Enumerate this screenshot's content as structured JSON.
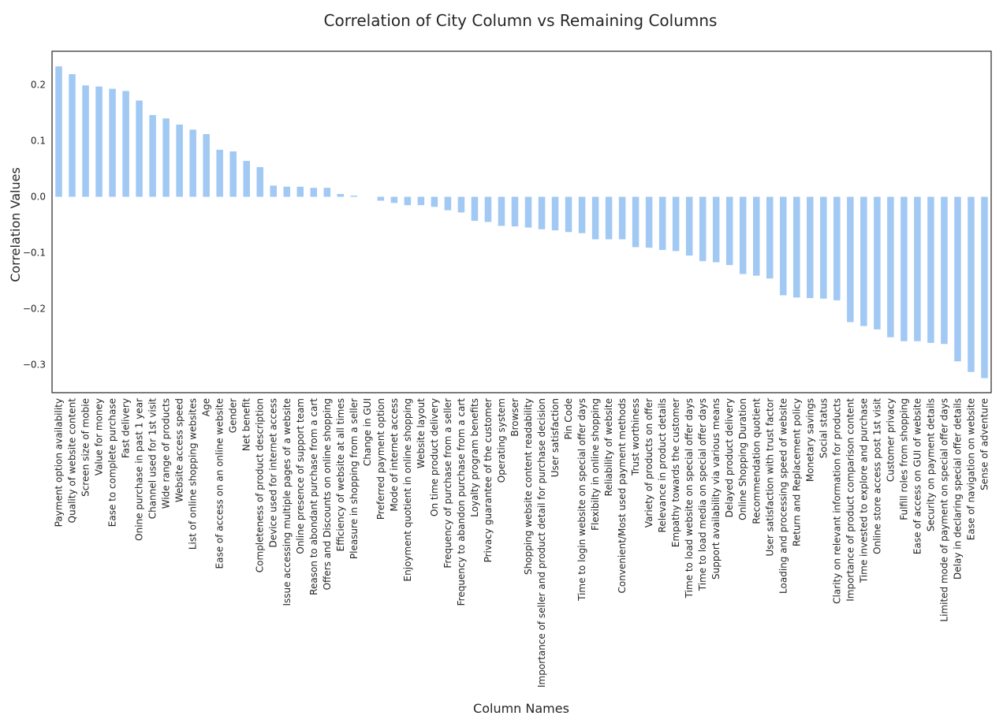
{
  "chart_data": {
    "type": "bar",
    "title": "Correlation of City Column vs Remaining Columns",
    "xlabel": "Column Names",
    "ylabel": "Correlation Values",
    "ylim": [
      -0.35,
      0.26
    ],
    "yticks": [
      0.2,
      0.1,
      0.0,
      -0.1,
      -0.2,
      -0.3
    ],
    "ytick_labels": [
      "0.2",
      "0.1",
      "0.0",
      "−0.1",
      "−0.2",
      "−0.3"
    ],
    "bar_color": "#a1c9f4",
    "grid": false,
    "legend": "none",
    "categories": [
      "Payment option availability",
      "Quality of website content",
      "Screen size of mobie",
      "Value for money",
      "Ease to complete purchase",
      "Fast delivery",
      "Onine purchase in past 1 year",
      "Channel used for 1st visit",
      "Wide range of products",
      "Website access speed",
      "List of online shopping websites",
      "Age",
      "Ease of access on an online website",
      "Gender",
      "Net benefit",
      "Completeness of product description",
      "Device used for internet access",
      "Issue accessing multiple pages of a website",
      "Online presence of support team",
      "Reason to abondant purchase from a cart",
      "Offers and Discounts on online shopping",
      "Efficiency of website at all times",
      "Pleasure in shopping from a seller",
      "Change in GUI",
      "Preferred payment option",
      "Mode of internet access",
      "Enjoyment quotient in online shopping",
      "Website layout",
      "On time product delivery",
      "Frequency of purchase from a seller",
      "Frequency to abandon purchase from a cart",
      "Loyalty program benefits",
      "Privacy guarantee of the customer",
      "Operating system",
      "Browser",
      "Shopping website content readability",
      "Importance of seller and product detail for purchase decision",
      "User satisfaction",
      "Pin Code",
      "Time to login website on special offer days",
      "Flexibilty in online shopping",
      "Reliability of website",
      "Convenient/Most used payment methods",
      "Trust worthiness",
      "Variety of products on offer",
      "Relevance in product details",
      "Empathy towards the customer",
      "Time to load website on special offer days",
      "Time to load media on special offer days",
      "Support availability via various means",
      "Delayed product delivery",
      "Online Shopping Duration",
      "Recommendation quotient",
      "User satisfaction with trust factor",
      "Loading and processing speed of website",
      "Return and Replacement policy",
      "Monetary savings",
      "Social status",
      "Clarity on relevant information for products",
      "Importance of product comparison content",
      "Time invested to explore and purchase",
      "Online store access post 1st visit",
      "Customer privacy",
      "Fulfill roles from shopping",
      "Ease of access on GUI of website",
      "Security on payment details",
      "Limited mode of payment on special offer days",
      "Delay in declaring special offer details",
      "Ease of navigation on website",
      "Sense of adventure"
    ],
    "values": [
      0.233,
      0.219,
      0.199,
      0.197,
      0.193,
      0.189,
      0.172,
      0.146,
      0.14,
      0.129,
      0.12,
      0.112,
      0.084,
      0.081,
      0.064,
      0.053,
      0.02,
      0.018,
      0.018,
      0.016,
      0.016,
      0.005,
      0.002,
      0.0,
      -0.007,
      -0.011,
      -0.015,
      -0.015,
      -0.018,
      -0.024,
      -0.028,
      -0.043,
      -0.045,
      -0.052,
      -0.053,
      -0.055,
      -0.058,
      -0.06,
      -0.063,
      -0.065,
      -0.076,
      -0.076,
      -0.076,
      -0.09,
      -0.091,
      -0.095,
      -0.097,
      -0.105,
      -0.115,
      -0.117,
      -0.122,
      -0.138,
      -0.141,
      -0.146,
      -0.176,
      -0.18,
      -0.181,
      -0.182,
      -0.185,
      -0.224,
      -0.231,
      -0.237,
      -0.251,
      -0.258,
      -0.258,
      -0.261,
      -0.263,
      -0.294,
      -0.313,
      -0.324
    ]
  }
}
